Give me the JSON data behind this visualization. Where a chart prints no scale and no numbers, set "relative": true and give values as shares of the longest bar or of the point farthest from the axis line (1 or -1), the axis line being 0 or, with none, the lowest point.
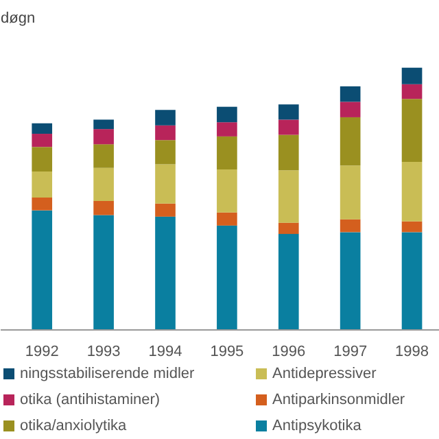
{
  "chart_data": {
    "type": "bar",
    "stacked": true,
    "relative": true,
    "title": "døgn",
    "categories": [
      "1992",
      "1993",
      "1994",
      "1995",
      "1996",
      "1997",
      "1998"
    ],
    "series": [
      {
        "name": "Antipsykotika",
        "color": "#0a7fa0",
        "values": [
          0.456,
          0.438,
          0.432,
          0.398,
          0.366,
          0.373,
          0.373
        ]
      },
      {
        "name": "Antiparkinsonmidler",
        "color": "#d45f1e",
        "values": [
          0.049,
          0.054,
          0.05,
          0.05,
          0.043,
          0.049,
          0.041
        ]
      },
      {
        "name": "Antidepressiver",
        "color": "#c9bd55",
        "values": [
          0.099,
          0.126,
          0.15,
          0.164,
          0.2,
          0.205,
          0.227
        ]
      },
      {
        "name": "otika/anxiolytika",
        "color": "#9a9020",
        "values": [
          0.094,
          0.09,
          0.092,
          0.126,
          0.135,
          0.184,
          0.24
        ]
      },
      {
        "name": "otika (antihistaminer)",
        "color": "#b8245a",
        "values": [
          0.05,
          0.058,
          0.056,
          0.054,
          0.058,
          0.059,
          0.056
        ]
      },
      {
        "name": "ningsstabiliserende midler",
        "color": "#0b4d73",
        "values": [
          0.04,
          0.036,
          0.059,
          0.059,
          0.058,
          0.059,
          0.063
        ]
      }
    ],
    "legend": "bottom",
    "grid": false
  }
}
